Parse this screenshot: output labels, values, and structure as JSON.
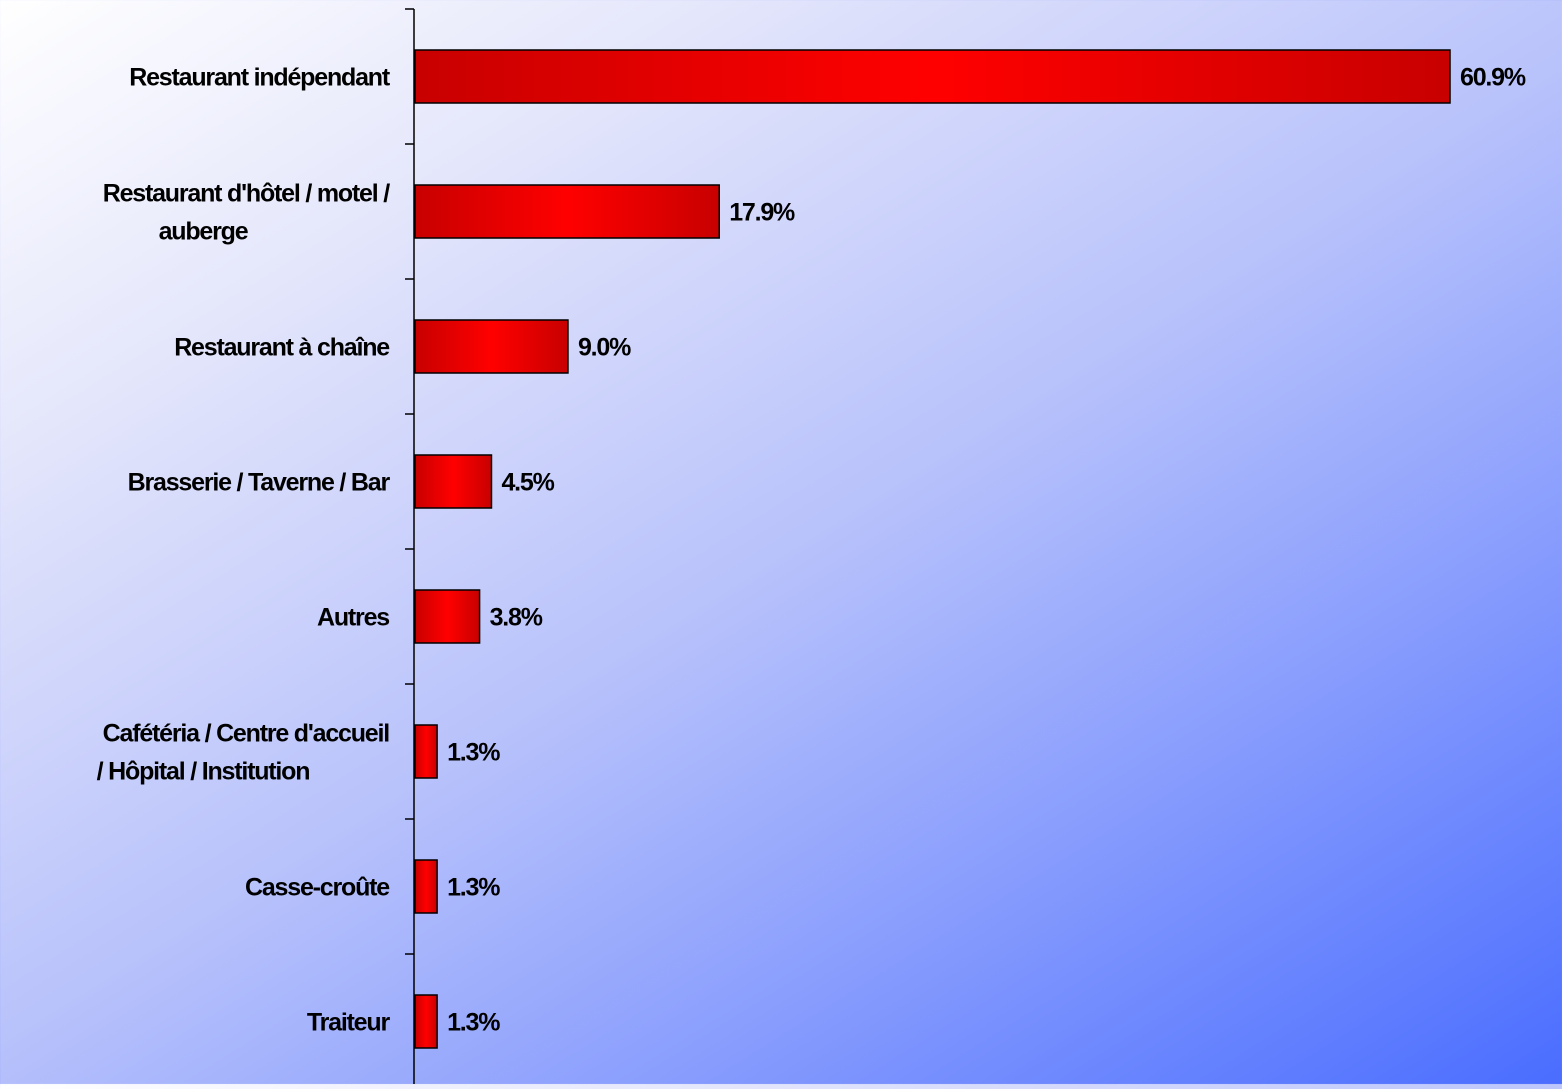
{
  "chart_data": {
    "type": "bar",
    "orientation": "horizontal",
    "categories": [
      [
        "Restaurant indépendant"
      ],
      [
        "Restaurant d'hôtel / motel /",
        "auberge"
      ],
      [
        "Restaurant à chaîne"
      ],
      [
        "Brasserie / Taverne / Bar"
      ],
      [
        "Autres"
      ],
      [
        "Cafétéria / Centre d'accueil",
        "/ Hôpital / Institution"
      ],
      [
        "Casse-croûte"
      ],
      [
        "Traiteur"
      ]
    ],
    "values": [
      60.9,
      17.9,
      9.0,
      4.5,
      3.8,
      1.3,
      1.3,
      1.3
    ],
    "data_labels": [
      "60.9%",
      "17.9%",
      "9.0%",
      "4.5%",
      "3.8%",
      "1.3%",
      "1.3%",
      "1.3%"
    ],
    "unit": "%",
    "xlim": [
      0,
      61
    ],
    "grid": false,
    "legend": "none",
    "colors": {
      "bar_dark": "#c80000",
      "bar_light": "#ff0000",
      "bar_border": "#000000",
      "text": "#000000",
      "axis": "#000000"
    }
  }
}
